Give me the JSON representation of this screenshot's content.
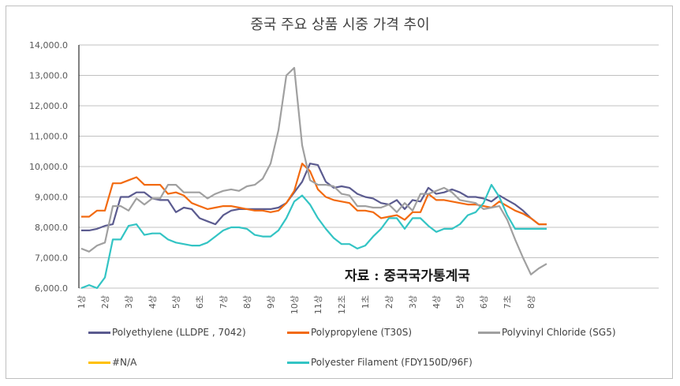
{
  "chart_data": {
    "type": "line",
    "title": "중국 주요 상품 시중 가격 추이",
    "xlabel": "",
    "ylabel": "",
    "ylim": [
      6000,
      14000
    ],
    "yticks": [
      "6,000.0",
      "7,000.0",
      "8,000.0",
      "9,000.0",
      "10,000.0",
      "11,000.0",
      "12,000.0",
      "13,000.0",
      "14,000.0"
    ],
    "ytick_values": [
      6000,
      7000,
      8000,
      9000,
      10000,
      11000,
      12000,
      13000,
      14000
    ],
    "grid": true,
    "legend_position": "bottom",
    "x_tick_labels": [
      "1상",
      "2상",
      "3상",
      "4상",
      "5상",
      "6초",
      "7상",
      "8상",
      "9상",
      "10상",
      "11상",
      "12초",
      "1초",
      "2상",
      "3상",
      "4상",
      "5상",
      "6상",
      "7초",
      "8상"
    ],
    "points_per_tick": 3,
    "annotation": "자료 : 중국국가통계국",
    "series": [
      {
        "name": "Polyethylene (LLDPE , 7042)",
        "color": "#5b5b8f",
        "values": [
          7900,
          7900,
          7950,
          8050,
          8100,
          9000,
          9000,
          9150,
          9150,
          8950,
          8900,
          8900,
          8500,
          8650,
          8600,
          8300,
          8200,
          8100,
          8400,
          8550,
          8600,
          8600,
          8600,
          8600,
          8600,
          8650,
          8800,
          9150,
          9500,
          10100,
          10050,
          9500,
          9300,
          9350,
          9300,
          9100,
          9000,
          8950,
          8800,
          8750,
          8900,
          8600,
          8900,
          8850,
          9300,
          9100,
          9150,
          9250,
          9150,
          9000,
          9000,
          8950,
          8850,
          9050,
          8900,
          8750,
          8550,
          8300,
          8100,
          8100
        ],
        "values_tail_note": ""
      },
      {
        "name": "Polypropylene (T30S)",
        "color": "#f26a10",
        "values": [
          8350,
          8350,
          8550,
          8550,
          9450,
          9450,
          9550,
          9650,
          9400,
          9400,
          9400,
          9100,
          9150,
          9050,
          8800,
          8700,
          8600,
          8650,
          8700,
          8700,
          8650,
          8600,
          8550,
          8550,
          8500,
          8550,
          8800,
          9200,
          10100,
          9850,
          9250,
          9000,
          8900,
          8850,
          8800,
          8550,
          8550,
          8500,
          8300,
          8350,
          8400,
          8250,
          8500,
          8500,
          9100,
          8900,
          8900,
          8850,
          8800,
          8750,
          8750,
          8700,
          8650,
          8850,
          8700,
          8550,
          8450,
          8300,
          8100,
          8100
        ]
      },
      {
        "name": "Polyvinyl Chloride (SG5)",
        "color": "#a0a0a0",
        "values": [
          7300,
          7200,
          7400,
          7500,
          8700,
          8700,
          8550,
          8950,
          8750,
          8950,
          8950,
          9400,
          9400,
          9150,
          9150,
          9150,
          8950,
          9100,
          9200,
          9250,
          9200,
          9350,
          9400,
          9600,
          10100,
          11200,
          13000,
          13250,
          10700,
          9550,
          9400,
          9400,
          9350,
          9100,
          9050,
          8700,
          8700,
          8650,
          8650,
          8750,
          8500,
          8800,
          8550,
          9100,
          9100,
          9200,
          9300,
          9150,
          8900,
          8850,
          8800,
          8600,
          8650,
          8700,
          8250,
          7600,
          7000,
          6450,
          6650,
          6800
        ]
      },
      {
        "name": "#N/A",
        "color": "#ffc000",
        "values": []
      },
      {
        "name": "Polyester Filament (FDY150D/96F)",
        "color": "#33c4c4",
        "values": [
          6000,
          6100,
          6000,
          6350,
          7600,
          7600,
          8050,
          8100,
          7750,
          7800,
          7800,
          7600,
          7500,
          7450,
          7400,
          7400,
          7500,
          7700,
          7900,
          8000,
          8000,
          7950,
          7750,
          7700,
          7700,
          7900,
          8300,
          8850,
          9050,
          8750,
          8300,
          7950,
          7650,
          7450,
          7450,
          7300,
          7400,
          7700,
          7950,
          8300,
          8300,
          7950,
          8300,
          8300,
          8050,
          7850,
          7950,
          7950,
          8100,
          8400,
          8500,
          8800,
          9400,
          9000,
          8400,
          7950,
          7950,
          7950,
          7950,
          7950
        ]
      }
    ]
  }
}
